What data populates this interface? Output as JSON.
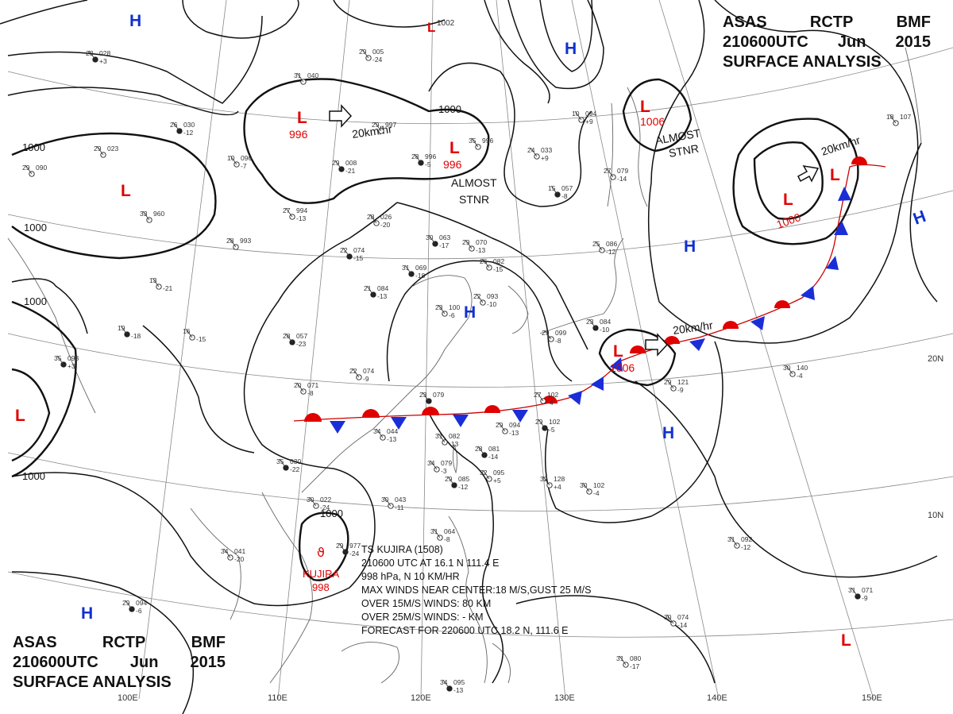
{
  "header": {
    "line1": [
      "ASAS",
      "RCTP",
      "BMF"
    ],
    "line2": [
      "210600UTC",
      "Jun",
      "2015"
    ],
    "line3": "SURFACE ANALYSIS"
  },
  "graticule_labels": {
    "lon": [
      "110E",
      "120E",
      "130E",
      "140E",
      "150E"
    ],
    "lat": [
      "20N",
      "10N"
    ],
    "lon_partial": "100E"
  },
  "isobars": {
    "labels": [
      "1000",
      "1000",
      "1000",
      "1000",
      "1000",
      "1000"
    ]
  },
  "pressure_centers": [
    {
      "kind": "L",
      "value": "996",
      "color": "#e00000"
    },
    {
      "kind": "L",
      "value": "996",
      "color": "#e00000"
    },
    {
      "kind": "L",
      "value": "",
      "color": "#e00000"
    },
    {
      "kind": "L",
      "value": "1006",
      "color": "#e00000"
    },
    {
      "kind": "L",
      "value": "1000",
      "color": "#e00000"
    },
    {
      "kind": "L",
      "value": "1006",
      "color": "#e00000"
    },
    {
      "kind": "L",
      "value": "",
      "color": "#e00000"
    },
    {
      "kind": "L",
      "value": "",
      "color": "#e00000"
    },
    {
      "kind": "L",
      "value": "1002",
      "color": "#e00000"
    },
    {
      "kind": "H",
      "value": "",
      "color": "#1030d0"
    },
    {
      "kind": "H",
      "value": "",
      "color": "#1030d0"
    },
    {
      "kind": "H",
      "value": "",
      "color": "#1030d0"
    },
    {
      "kind": "H",
      "value": "",
      "color": "#1030d0"
    },
    {
      "kind": "H",
      "value": "",
      "color": "#1030d0"
    },
    {
      "kind": "H",
      "value": "",
      "color": "#1030d0"
    },
    {
      "kind": "H",
      "value": "",
      "color": "#1030d0"
    }
  ],
  "motion_labels": [
    "20km/hr",
    "20km/hr",
    "20km/hr"
  ],
  "stationary_labels": [
    {
      "line1": "ALMOST",
      "line2": "STNR"
    },
    {
      "line1": "ALMOST",
      "line2": "STNR"
    }
  ],
  "typhoon": {
    "name": "KUJIRA",
    "pressure": "998",
    "info_lines": [
      "TS  KUJIRA  (1508)",
      "210600 UTC  AT 16.1 N  111.4 E",
      "998 hPa, N  10 KM/HR",
      "MAX WINDS NEAR CENTER:18 M/S,GUST 25 M/S",
      "OVER 15M/S WINDS: 80 KM",
      "OVER 25M/S WINDS: - KM",
      "FORECAST FOR 220600 UTC 18.2 N, 111.6 E"
    ]
  },
  "station_plots": [
    {
      "t": "23",
      "p": "028",
      "tend": "+3"
    },
    {
      "t": "31",
      "p": "040",
      "tend": ""
    },
    {
      "t": "29",
      "p": "005",
      "tend": "-24"
    },
    {
      "t": "26",
      "p": "030",
      "tend": "-12"
    },
    {
      "t": "29",
      "p": "997",
      "tend": ""
    },
    {
      "t": "35",
      "p": "996",
      "tend": ""
    },
    {
      "t": "28",
      "p": "996",
      "tend": "-5"
    },
    {
      "t": "29",
      "p": "023",
      "tend": ""
    },
    {
      "t": "10",
      "p": "096",
      "tend": "-7"
    },
    {
      "t": "29",
      "p": "008",
      "tend": "-21"
    },
    {
      "t": "27",
      "p": "994",
      "tend": "-13"
    },
    {
      "t": "28",
      "p": "026",
      "tend": "-20"
    },
    {
      "t": "30",
      "p": "063",
      "tend": "-17"
    },
    {
      "t": "29",
      "p": "070",
      "tend": "-13"
    },
    {
      "t": "26",
      "p": "082",
      "tend": "-15"
    },
    {
      "t": "31",
      "p": "069",
      "tend": "-18"
    },
    {
      "t": "24",
      "p": "033",
      "tend": "+9"
    },
    {
      "t": "10",
      "p": "094",
      "tend": "+9"
    },
    {
      "t": "15",
      "p": "057",
      "tend": "-8"
    },
    {
      "t": "27",
      "p": "079",
      "tend": "-14"
    },
    {
      "t": "25",
      "p": "086",
      "tend": "-12"
    },
    {
      "t": "21",
      "p": "084",
      "tend": "-13"
    },
    {
      "t": "22",
      "p": "093",
      "tend": "-10"
    },
    {
      "t": "23",
      "p": "100",
      "tend": "-6"
    },
    {
      "t": "28",
      "p": "057",
      "tend": "-23"
    },
    {
      "t": "22",
      "p": "074",
      "tend": "-9"
    },
    {
      "t": "20",
      "p": "071",
      "tend": "-8"
    },
    {
      "t": "23",
      "p": "079",
      "tend": ""
    },
    {
      "t": "27",
      "p": "102",
      "tend": "-4"
    },
    {
      "t": "29",
      "p": "094",
      "tend": "-13"
    },
    {
      "t": "29",
      "p": "102",
      "tend": "-5"
    },
    {
      "t": "34",
      "p": "044",
      "tend": "-13"
    },
    {
      "t": "31",
      "p": "082",
      "tend": "-13"
    },
    {
      "t": "28",
      "p": "081",
      "tend": "-14"
    },
    {
      "t": "34",
      "p": "079",
      "tend": "-3"
    },
    {
      "t": "32",
      "p": "095",
      "tend": "+5"
    },
    {
      "t": "29",
      "p": "085",
      "tend": "-12"
    },
    {
      "t": "32",
      "p": "128",
      "tend": "+4"
    },
    {
      "t": "30",
      "p": "102",
      "tend": "-4"
    },
    {
      "t": "35",
      "p": "030",
      "tend": "-22"
    },
    {
      "t": "30",
      "p": "022",
      "tend": "-24"
    },
    {
      "t": "34",
      "p": "041",
      "tend": "-20"
    },
    {
      "t": "29",
      "p": "977",
      "tend": "-24"
    },
    {
      "t": "30",
      "p": "043",
      "tend": "-11"
    },
    {
      "t": "31",
      "p": "064",
      "tend": "-8"
    },
    {
      "t": "29",
      "p": "094",
      "tend": "-6"
    },
    {
      "t": "30",
      "p": "074",
      "tend": "-14"
    },
    {
      "t": "31",
      "p": "080",
      "tend": "-17"
    },
    {
      "t": "34",
      "p": "095",
      "tend": "-13"
    },
    {
      "t": "30",
      "p": "140",
      "tend": "-4"
    },
    {
      "t": "31",
      "p": "092",
      "tend": "-12"
    },
    {
      "t": "31",
      "p": "071",
      "tend": "-9"
    },
    {
      "t": "29",
      "p": "121",
      "tend": "-9"
    },
    {
      "t": "18",
      "p": "107",
      "tend": ""
    },
    {
      "t": "35",
      "p": "093",
      "tend": "+3"
    },
    {
      "t": "13",
      "p": "",
      "tend": "-21"
    },
    {
      "t": "16",
      "p": "",
      "tend": "-15"
    },
    {
      "t": "19",
      "p": "",
      "tend": "-18"
    },
    {
      "t": "33",
      "p": "960",
      "tend": ""
    },
    {
      "t": "28",
      "p": "993",
      "tend": ""
    },
    {
      "t": "22",
      "p": "074",
      "tend": "-15"
    },
    {
      "t": "29",
      "p": "099",
      "tend": "-8"
    },
    {
      "t": "29",
      "p": "090",
      "tend": ""
    },
    {
      "t": "23",
      "p": "084",
      "tend": "-10"
    }
  ]
}
